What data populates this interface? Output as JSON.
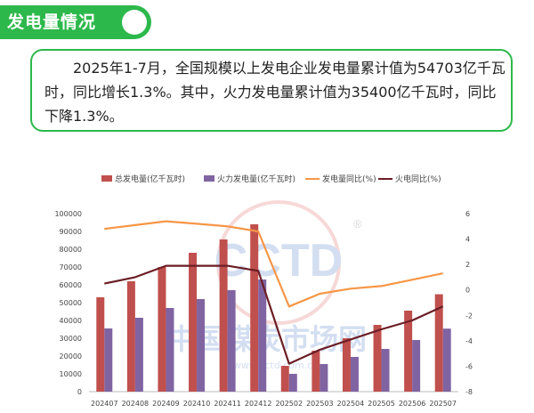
{
  "header": {
    "title": "发电量情况"
  },
  "summary": {
    "text": "2025年1-7月，全国规模以上发电企业发电量累计值为54703亿千瓦时，同比增长1.3%。其中，火力发电量累计值为35400亿千瓦时，同比下降1.3%。"
  },
  "watermark": {
    "logo": "CCTD",
    "registered": "®",
    "name": "中国煤炭市场网",
    "url": "www.cctd.com.cn"
  },
  "colors": {
    "total_bar": "#c0504d",
    "thermal_bar": "#8064a2",
    "total_yoy": "#f79646",
    "thermal_yoy": "#6b1d25",
    "accent": "#2db84b"
  },
  "chart_data": {
    "type": "bar",
    "categories": [
      "202407",
      "202408",
      "202409",
      "202410",
      "202411",
      "202412",
      "202502",
      "202503",
      "202504",
      "202505",
      "202506",
      "202507"
    ],
    "series": [
      {
        "name": "总发电量(亿千瓦时)",
        "type": "bar",
        "axis": "left",
        "values": [
          53000,
          62000,
          70000,
          78000,
          85500,
          94000,
          14500,
          23000,
          30000,
          37500,
          45500,
          54703
        ]
      },
      {
        "name": "火力发电量(亿千瓦时)",
        "type": "bar",
        "axis": "left",
        "values": [
          35500,
          41500,
          47000,
          52000,
          57000,
          63000,
          10000,
          15500,
          19500,
          24000,
          29000,
          35400
        ]
      },
      {
        "name": "发电量同比(%)",
        "type": "line",
        "axis": "right",
        "values": [
          4.8,
          5.1,
          5.4,
          5.2,
          5.0,
          4.6,
          -1.3,
          -0.3,
          0.1,
          0.3,
          0.8,
          1.3
        ]
      },
      {
        "name": "火电同比(%)",
        "type": "line",
        "axis": "right",
        "values": [
          0.5,
          1.0,
          1.9,
          1.9,
          1.9,
          1.5,
          -5.8,
          -4.7,
          -3.9,
          -3.1,
          -2.4,
          -1.3
        ]
      }
    ],
    "ylim_left": [
      0,
      100000
    ],
    "yticks_left": [
      "0",
      "10000",
      "20000",
      "30000",
      "40000",
      "50000",
      "60000",
      "70000",
      "80000",
      "90000",
      "100000"
    ],
    "ylim_right": [
      -8,
      6
    ],
    "yticks_right": [
      "-8",
      "-6",
      "-4",
      "-2",
      "0",
      "2",
      "4",
      "6"
    ],
    "legend_position": "top",
    "grid": false
  }
}
